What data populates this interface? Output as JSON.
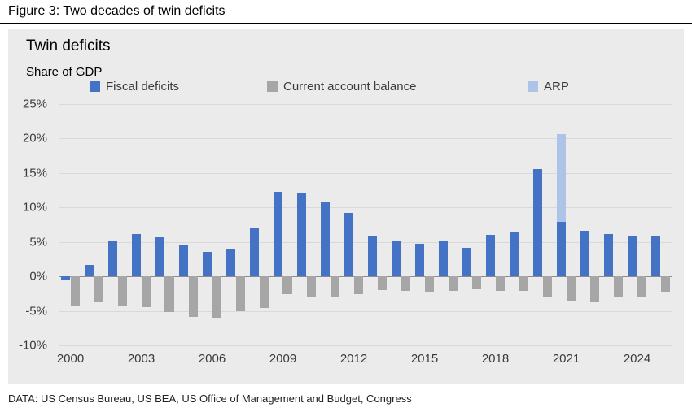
{
  "figure": {
    "title": "Figure 3: Two decades of twin deficits",
    "caption": "DATA: US Census Bureau, US BEA, US Office of Management and Budget, Congress"
  },
  "chart_data": {
    "type": "bar",
    "title": "Twin deficits",
    "subtitle": "Share of GDP",
    "ylim": [
      -10,
      25
    ],
    "yticks": [
      25,
      20,
      15,
      10,
      5,
      0,
      -5,
      -10
    ],
    "grid": "horizontal",
    "legend_position": "top",
    "categories": [
      2000,
      2001,
      2002,
      2003,
      2004,
      2005,
      2006,
      2007,
      2008,
      2009,
      2010,
      2011,
      2012,
      2013,
      2014,
      2015,
      2016,
      2017,
      2018,
      2019,
      2020,
      2021,
      2022,
      2023,
      2024,
      2025
    ],
    "xtick_labels": [
      "2000",
      "2003",
      "2006",
      "2009",
      "2012",
      "2015",
      "2018",
      "2021",
      "2024"
    ],
    "series": [
      {
        "name": "Fiscal deficits",
        "color": "#4472C4",
        "values": [
          -0.5,
          1.7,
          5.1,
          6.2,
          5.7,
          4.5,
          3.5,
          4.0,
          7.0,
          12.3,
          12.1,
          10.7,
          9.2,
          5.8,
          5.1,
          4.7,
          5.2,
          4.2,
          6.0,
          6.5,
          15.6,
          7.9,
          6.6,
          6.2,
          5.9,
          5.8
        ]
      },
      {
        "name": "Current account balance",
        "color": "#A6A6A6",
        "values": [
          -4.2,
          -3.7,
          -4.2,
          -4.5,
          -5.2,
          -5.9,
          -6.0,
          -5.0,
          -4.6,
          -2.6,
          -2.9,
          -2.9,
          -2.6,
          -2.0,
          -2.1,
          -2.2,
          -2.1,
          -1.9,
          -2.1,
          -2.1,
          -2.9,
          -3.5,
          -3.8,
          -3.0,
          -3.1,
          -2.2
        ]
      },
      {
        "name": "ARP",
        "color": "#AEC3E8",
        "stacked_on": "Fiscal deficits",
        "values": [
          0,
          0,
          0,
          0,
          0,
          0,
          0,
          0,
          0,
          0,
          0,
          0,
          0,
          0,
          0,
          0,
          0,
          0,
          0,
          0,
          0,
          12.7,
          0,
          0,
          0,
          0
        ]
      }
    ]
  }
}
